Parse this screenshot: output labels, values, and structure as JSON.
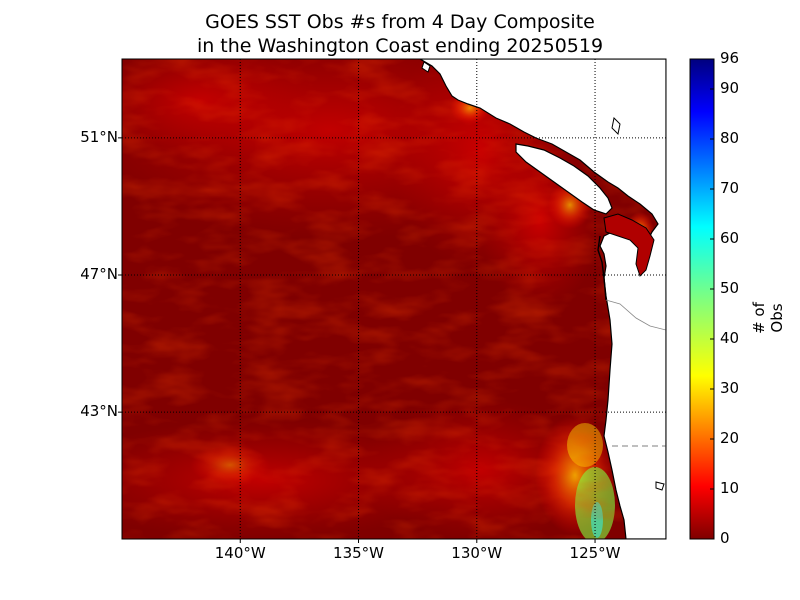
{
  "title": {
    "line1": "GOES SST Obs #s from 4 Day Composite",
    "line2": "in the Washington Coast ending 20250519"
  },
  "map": {
    "lat_labels": [
      "51°N",
      "47°N",
      "43°N"
    ],
    "lon_labels": [
      "140°W",
      "135°W",
      "130°W",
      "125°W"
    ],
    "lat_values": [
      51,
      47,
      43
    ],
    "lon_values": [
      -140,
      -135,
      -130,
      -125
    ],
    "extent": {
      "lon_min": -145,
      "lon_max": -122,
      "lat_min": 39.3,
      "lat_max": 53.3
    }
  },
  "colorbar": {
    "label": "# of Obs",
    "ticks": [
      "0",
      "10",
      "20",
      "30",
      "40",
      "50",
      "60",
      "70",
      "80",
      "90",
      "96"
    ],
    "tick_values": [
      0,
      10,
      20,
      30,
      40,
      50,
      60,
      70,
      80,
      90,
      96
    ],
    "min": 0,
    "max": 96,
    "colormap": "jet"
  },
  "colors": {
    "ocean_low": "#800000",
    "ocean_mid": "#cc0000",
    "ocean_high": "#ff6a00",
    "land": "#ffffff",
    "coast": "#000000"
  }
}
